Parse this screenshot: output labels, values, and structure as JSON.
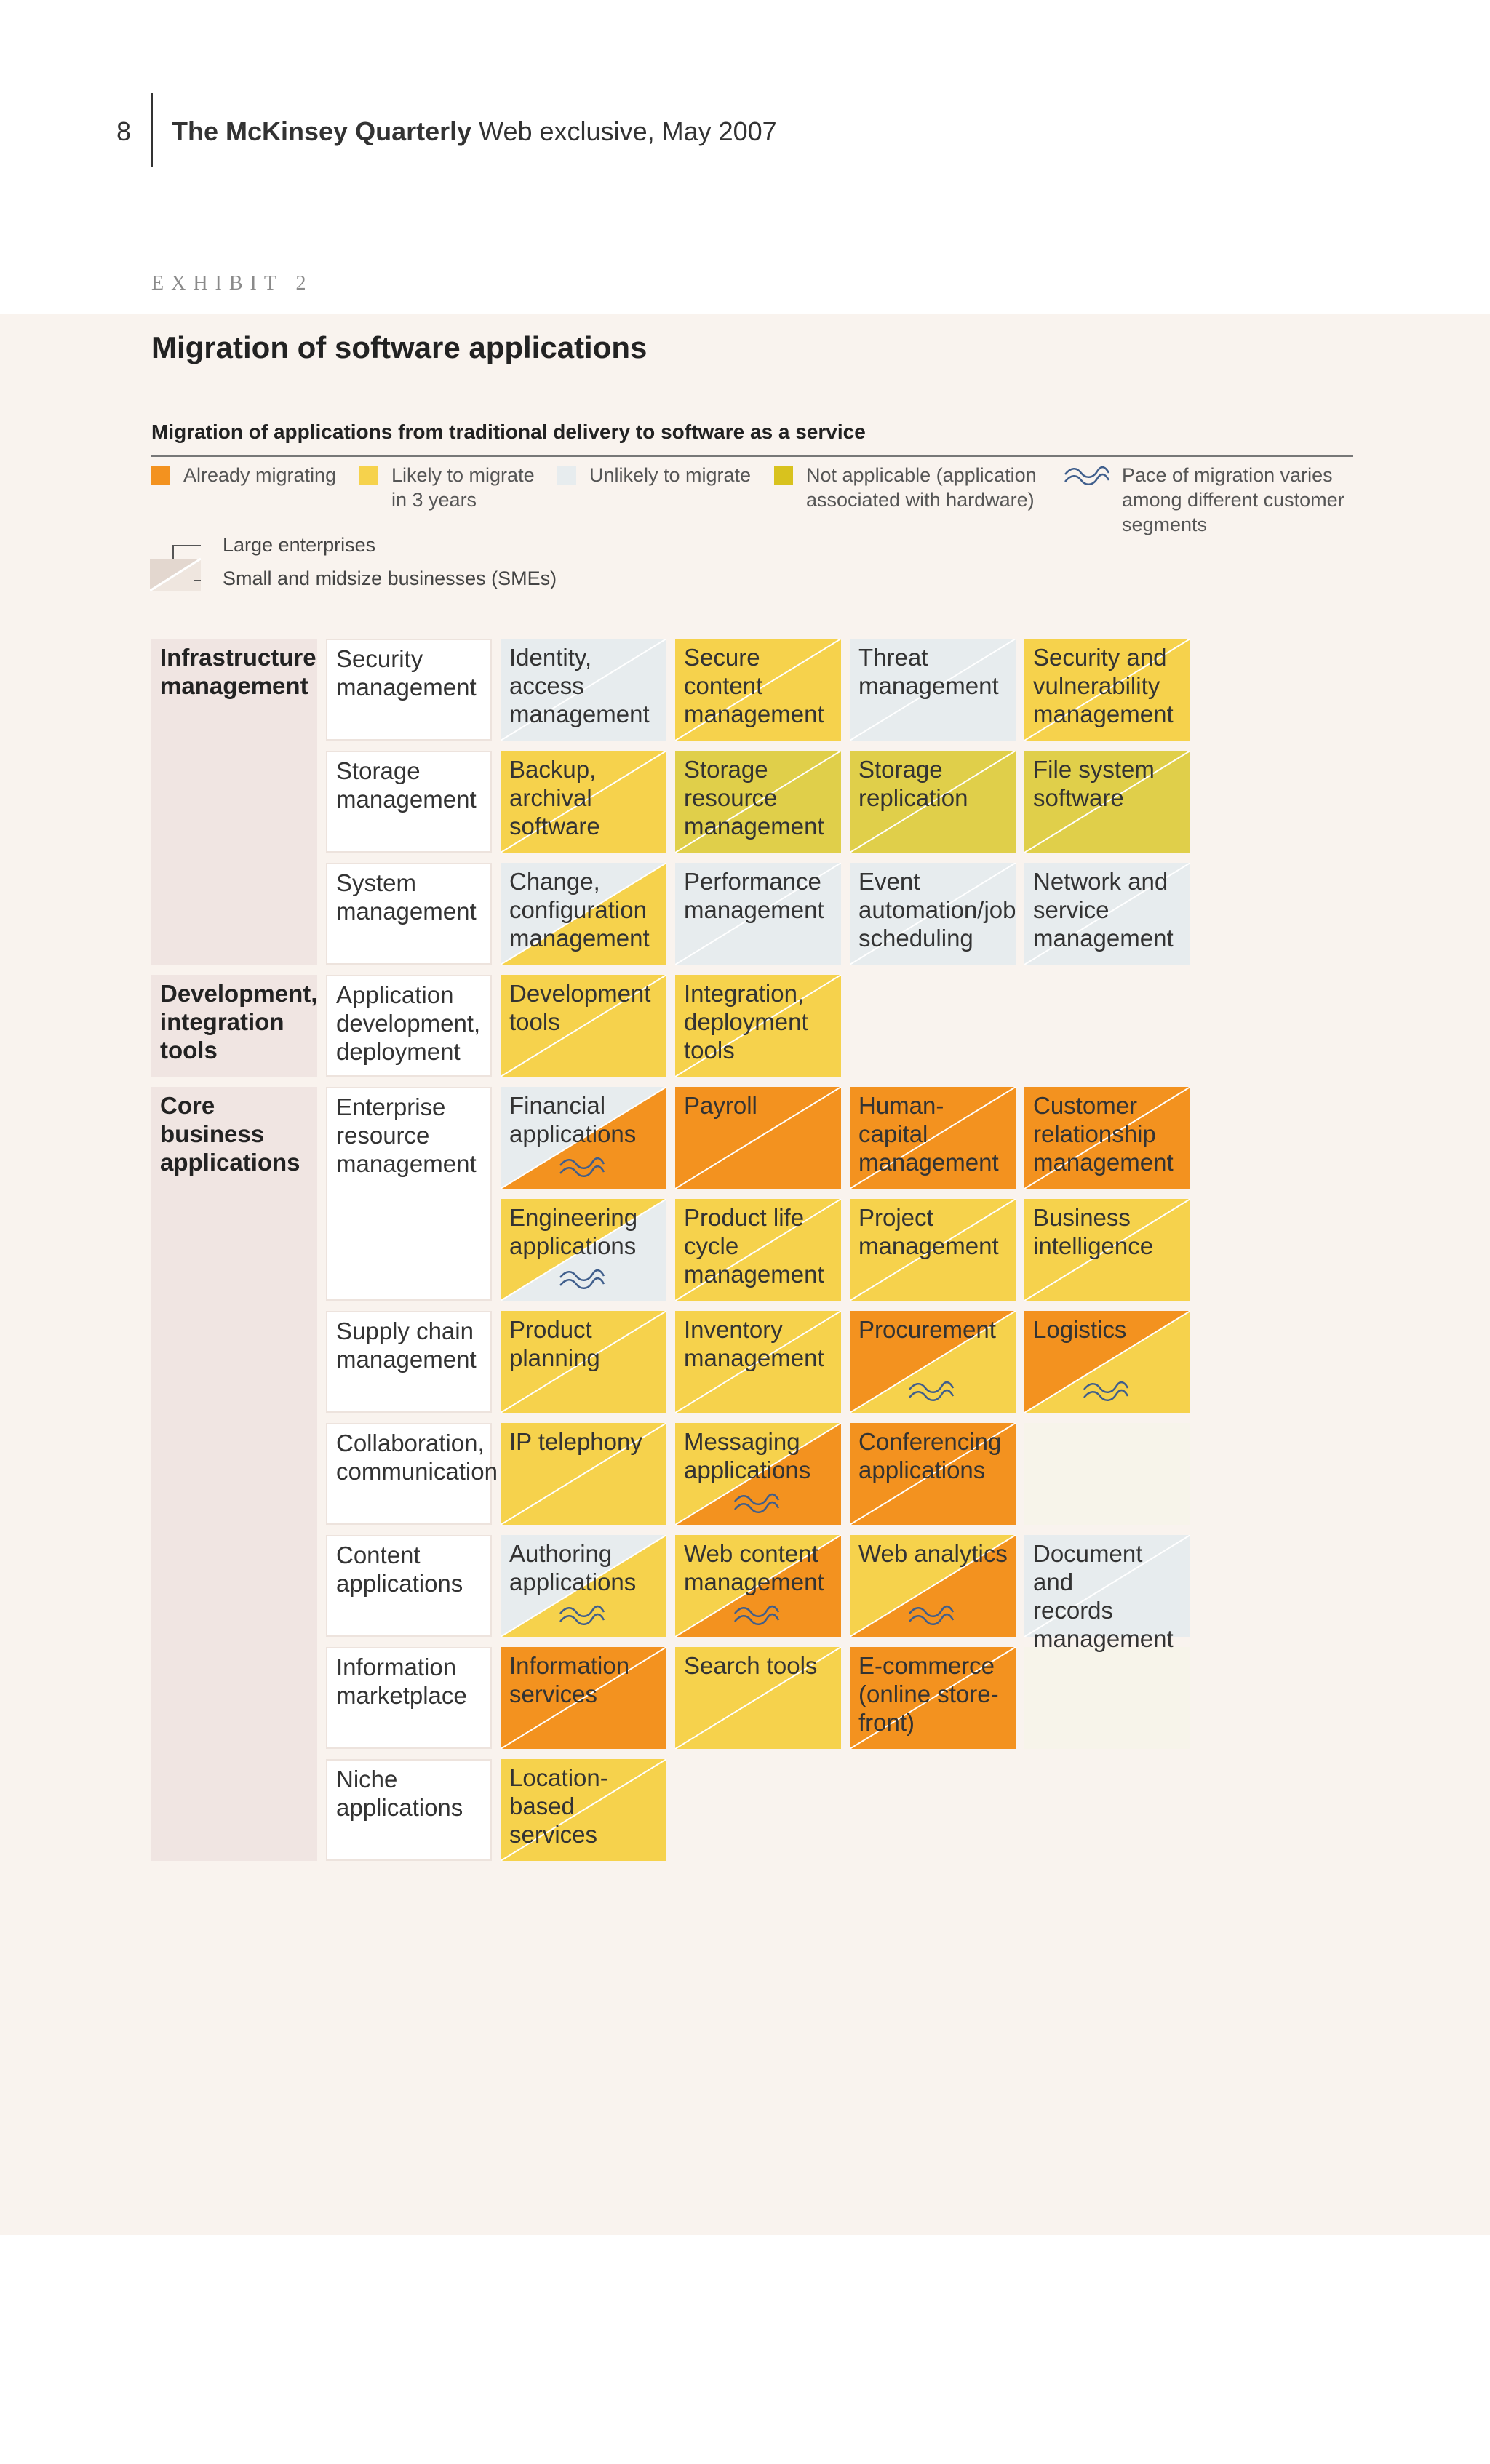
{
  "header": {
    "page_number": "8",
    "publication": "The McKinsey Quarterly",
    "edition": "Web exclusive, May 2007"
  },
  "exhibit": {
    "label": "EXHIBIT 2",
    "title": "Migration of software applications",
    "subtitle": "Migration of applications from traditional delivery to software as a service"
  },
  "colors": {
    "already_migrating": "#f3921f",
    "likely_3_years": "#f6d24c",
    "unlikely": "#e7ecee",
    "not_applicable": "#e0cf4a",
    "wave": "#3f5e8c"
  },
  "legend": {
    "already": "Already migrating",
    "likely_l1": "Likely to migrate",
    "likely_l2": "in 3 years",
    "unlikely": "Unlikely to migrate",
    "na_l1": "Not applicable (application",
    "na_l2": "associated with hardware)",
    "wave_l1": "Pace of migration varies",
    "wave_l2": "among different customer",
    "wave_l3": "segments",
    "wave_icon": "wave-icon"
  },
  "key": {
    "large": "Large enterprises",
    "smes": "Small and midsize businesses (SMEs)"
  },
  "grid": {
    "categories": [
      {
        "lines": [
          "Infrastructure",
          "management"
        ]
      },
      {
        "lines": [
          "Development,",
          "integration",
          "tools"
        ]
      },
      {
        "lines": [
          "Core",
          "business",
          "applications"
        ]
      }
    ],
    "subcategories": [
      {
        "lines": [
          "Security",
          "management"
        ]
      },
      {
        "lines": [
          "Storage",
          "management"
        ]
      },
      {
        "lines": [
          "System",
          "management"
        ]
      },
      {
        "lines": [
          "Application",
          "development,",
          "deployment"
        ]
      },
      {
        "lines": [
          "Enterprise",
          "resource",
          "management"
        ]
      },
      {
        "lines": [
          "Supply chain",
          "management"
        ]
      },
      {
        "lines": [
          "Collaboration,",
          "communication"
        ]
      },
      {
        "lines": [
          "Content",
          "applications"
        ]
      },
      {
        "lines": [
          "Information",
          "marketplace"
        ]
      },
      {
        "lines": [
          "Niche",
          "applications"
        ]
      }
    ],
    "apps": [
      {
        "lines": [
          "Identity, access",
          "management"
        ],
        "large": "unlikely",
        "sme": "unlikely",
        "wave": false
      },
      {
        "lines": [
          "Secure",
          "content",
          "management"
        ],
        "large": "likely",
        "sme": "likely",
        "wave": false
      },
      {
        "lines": [
          "Threat",
          "management"
        ],
        "large": "unlikely",
        "sme": "unlikely",
        "wave": false
      },
      {
        "lines": [
          "Security and",
          "vulnerability",
          "management"
        ],
        "large": "likely",
        "sme": "likely",
        "wave": false
      },
      {
        "lines": [
          "Backup,",
          "archival",
          "software"
        ],
        "large": "likely",
        "sme": "likely",
        "wave": false
      },
      {
        "lines": [
          "Storage",
          "resource",
          "management"
        ],
        "large": "na",
        "sme": "na",
        "wave": false
      },
      {
        "lines": [
          "Storage",
          "replication"
        ],
        "large": "na",
        "sme": "na",
        "wave": false
      },
      {
        "lines": [
          "File system",
          "software"
        ],
        "large": "na",
        "sme": "na",
        "wave": false
      },
      {
        "lines": [
          "Change,",
          "configuration",
          "management"
        ],
        "large": "unlikely",
        "sme": "likely",
        "wave": false
      },
      {
        "lines": [
          "Performance",
          "management"
        ],
        "large": "unlikely",
        "sme": "unlikely",
        "wave": false
      },
      {
        "lines": [
          "Event",
          "automation/job",
          "scheduling"
        ],
        "large": "unlikely",
        "sme": "unlikely",
        "wave": false
      },
      {
        "lines": [
          "Network and",
          "service",
          "management"
        ],
        "large": "unlikely",
        "sme": "unlikely",
        "wave": false
      },
      {
        "lines": [
          "Development",
          "tools"
        ],
        "large": "likely",
        "sme": "likely",
        "wave": false
      },
      {
        "lines": [
          "Integration,",
          "deployment",
          "tools"
        ],
        "large": "likely",
        "sme": "likely",
        "wave": false
      },
      {
        "lines": [
          "Financial",
          "applications"
        ],
        "large": "unlikely",
        "sme": "already",
        "wave": true
      },
      {
        "lines": [
          "Payroll"
        ],
        "large": "already",
        "sme": "already",
        "wave": false
      },
      {
        "lines": [
          "Human-capital",
          "management"
        ],
        "large": "already",
        "sme": "already",
        "wave": false
      },
      {
        "lines": [
          "Customer",
          "relationship",
          "management"
        ],
        "large": "already",
        "sme": "already",
        "wave": false
      },
      {
        "lines": [
          "Engineering",
          "applications"
        ],
        "large": "likely",
        "sme": "unlikely",
        "wave": true
      },
      {
        "lines": [
          "Product life",
          "cycle",
          "management"
        ],
        "large": "likely",
        "sme": "likely",
        "wave": false
      },
      {
        "lines": [
          "Project",
          "management"
        ],
        "large": "likely",
        "sme": "likely",
        "wave": false
      },
      {
        "lines": [
          "Business",
          "intelligence"
        ],
        "large": "likely",
        "sme": "likely",
        "wave": false
      },
      {
        "lines": [
          "Product",
          "planning"
        ],
        "large": "likely",
        "sme": "likely",
        "wave": false
      },
      {
        "lines": [
          "Inventory",
          "management"
        ],
        "large": "likely",
        "sme": "likely",
        "wave": false
      },
      {
        "lines": [
          "Procurement"
        ],
        "large": "already",
        "sme": "likely",
        "wave": true
      },
      {
        "lines": [
          "Logistics"
        ],
        "large": "already",
        "sme": "likely",
        "wave": true
      },
      {
        "lines": [
          "IP telephony"
        ],
        "large": "likely",
        "sme": "likely",
        "wave": false
      },
      {
        "lines": [
          "Messaging",
          "applications"
        ],
        "large": "likely",
        "sme": "already",
        "wave": true
      },
      {
        "lines": [
          "Conferencing",
          "applications"
        ],
        "large": "already",
        "sme": "already",
        "wave": false
      },
      {
        "lines": [
          "Authoring",
          "applications"
        ],
        "large": "unlikely",
        "sme": "likely",
        "wave": true
      },
      {
        "lines": [
          "Web content",
          "management"
        ],
        "large": "likely",
        "sme": "already",
        "wave": true
      },
      {
        "lines": [
          "Web analytics"
        ],
        "large": "likely",
        "sme": "already",
        "wave": true
      },
      {
        "lines": [
          "Document and",
          "records",
          "management"
        ],
        "large": "unlikely",
        "sme": "unlikely",
        "wave": false
      },
      {
        "lines": [
          "Information",
          "services"
        ],
        "large": "already",
        "sme": "already",
        "wave": false
      },
      {
        "lines": [
          "Search tools"
        ],
        "large": "likely",
        "sme": "likely",
        "wave": false
      },
      {
        "lines": [
          "E-commerce",
          "(online store-",
          "front)"
        ],
        "large": "already",
        "sme": "already",
        "wave": false
      },
      {
        "lines": [
          "Location-based",
          "services"
        ],
        "large": "likely",
        "sme": "likely",
        "wave": false
      }
    ]
  }
}
